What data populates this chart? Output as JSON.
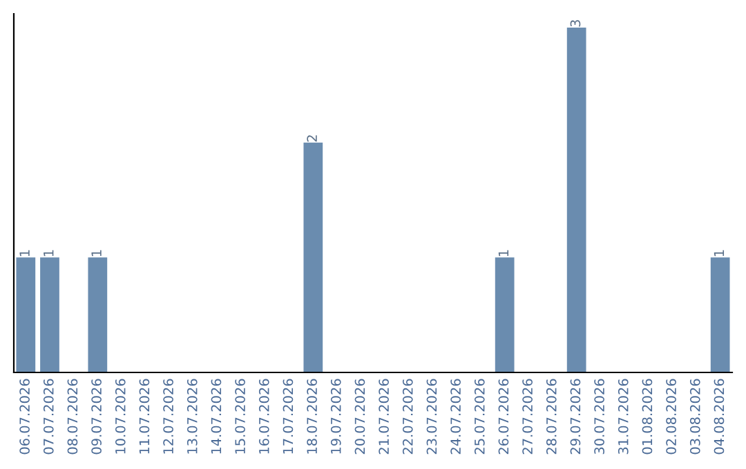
{
  "chart_data": {
    "type": "bar",
    "categories": [
      "06.07.2026",
      "07.07.2026",
      "08.07.2026",
      "09.07.2026",
      "10.07.2026",
      "11.07.2026",
      "12.07.2026",
      "13.07.2026",
      "14.07.2026",
      "15.07.2026",
      "16.07.2026",
      "17.07.2026",
      "18.07.2026",
      "19.07.2026",
      "20.07.2026",
      "21.07.2026",
      "22.07.2026",
      "23.07.2026",
      "24.07.2026",
      "25.07.2026",
      "26.07.2026",
      "27.07.2026",
      "28.07.2026",
      "29.07.2026",
      "30.07.2026",
      "31.07.2026",
      "01.08.2026",
      "02.08.2026",
      "03.08.2026",
      "04.08.2026"
    ],
    "values": [
      1,
      1,
      0,
      1,
      0,
      0,
      0,
      0,
      0,
      0,
      0,
      0,
      2,
      0,
      0,
      0,
      0,
      0,
      0,
      0,
      1,
      0,
      0,
      3,
      0,
      0,
      0,
      0,
      0,
      1
    ],
    "value_labels": [
      "1",
      "1",
      null,
      "1",
      null,
      null,
      null,
      null,
      null,
      null,
      null,
      null,
      "2",
      null,
      null,
      null,
      null,
      null,
      null,
      null,
      "1",
      null,
      null,
      "3",
      null,
      null,
      null,
      null,
      null,
      "1"
    ],
    "color": "#6a8caf",
    "grid": false,
    "legend": false
  }
}
